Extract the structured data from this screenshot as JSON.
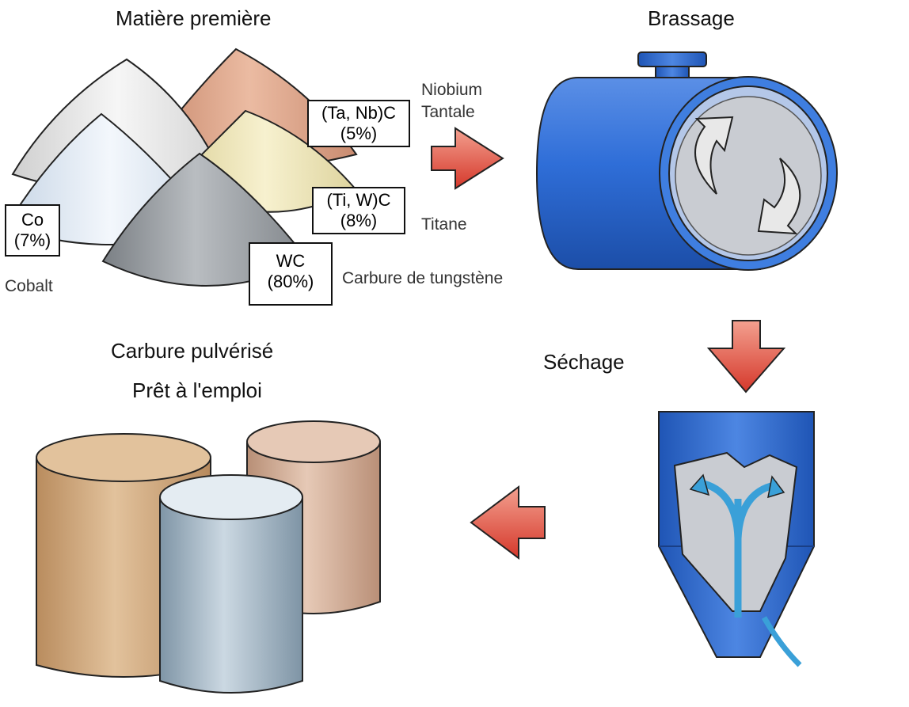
{
  "titles": {
    "raw_material": "Matière première",
    "mixing": "Brassage",
    "drying": "Séchage",
    "powder_line1": "Carbure pulvérisé",
    "powder_line2": "Prêt à l'emploi"
  },
  "components": [
    {
      "formula": "(Ta, Nb)C",
      "share": "(5%)",
      "name_lines": [
        "Niobium",
        "Tantale"
      ]
    },
    {
      "formula": "(Ti, W)C",
      "share": "(8%)",
      "name_lines": [
        "Titane"
      ]
    },
    {
      "formula": "WC",
      "share": "(80%)",
      "name_lines": [
        "Carbure de tungstène"
      ]
    },
    {
      "formula": "Co",
      "share": "(7%)",
      "name_lines": [
        "Cobalt"
      ]
    }
  ],
  "colors": {
    "arrow_red": "#e0473a",
    "machine_blue": "#2f6ed8",
    "machine_interior": "#c9ccd2",
    "flow_arrow": "#3aa0d8",
    "cone_white": "#e4e4e4",
    "cone_copper": "#d89a7c",
    "cone_blue_white": "#dde7f2",
    "cone_cream": "#ece4b4",
    "cone_grey": "#8d9297",
    "drum_tan": "#c9a379",
    "drum_rose": "#c9a58e",
    "drum_steel": "#9fb3c2"
  },
  "icons": [
    "flow-arrow-icon",
    "rotation-arrow-icon",
    "circulation-arrow-icon"
  ]
}
